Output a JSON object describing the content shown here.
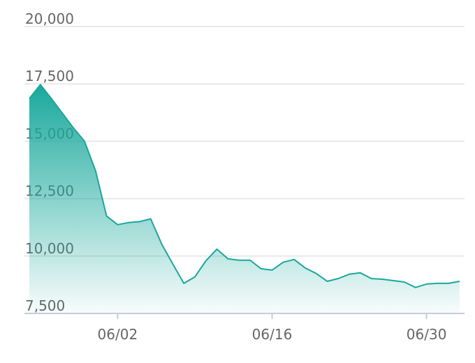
{
  "chart_data": {
    "type": "area",
    "categories": [
      null,
      null,
      null,
      null,
      null,
      null,
      null,
      null,
      "06/02",
      null,
      null,
      null,
      null,
      null,
      null,
      null,
      null,
      null,
      null,
      null,
      null,
      null,
      "06/16",
      null,
      null,
      null,
      null,
      null,
      null,
      null,
      null,
      null,
      null,
      null,
      null,
      null,
      "06/30",
      null,
      null,
      null
    ],
    "values": [
      16860,
      17470,
      16860,
      16220,
      15580,
      15000,
      13720,
      11740,
      11370,
      11460,
      11500,
      11620,
      10520,
      9660,
      8810,
      9090,
      9790,
      10300,
      9880,
      9820,
      9820,
      9450,
      9390,
      9730,
      9850,
      9480,
      9240,
      8900,
      9020,
      9210,
      9270,
      9020,
      8990,
      8930,
      8870,
      8630,
      8780,
      8810,
      8810,
      8900
    ],
    "color": "#1aa89c",
    "ylim": [
      7500,
      20000
    ],
    "yticks": [
      {
        "value": 7500,
        "label": "7,500"
      },
      {
        "value": 10000,
        "label": "10,000"
      },
      {
        "value": 12500,
        "label": "12,500"
      },
      {
        "value": 15000,
        "label": "15,000"
      },
      {
        "value": 17500,
        "label": "17,500"
      },
      {
        "value": 20000,
        "label": "20,000"
      }
    ],
    "grid": true
  }
}
